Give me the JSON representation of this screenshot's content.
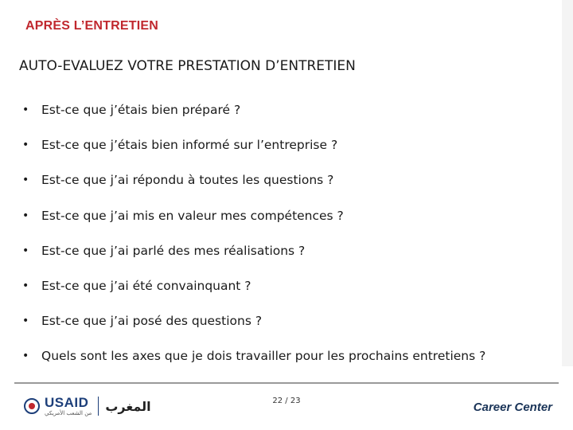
{
  "header": {
    "title": "APRÈS L’ENTRETIEN",
    "subtitle": "AUTO-EVALUEZ VOTRE PRESTATION D’ENTRETIEN"
  },
  "bullet_marker": "•",
  "bullets": [
    "Est-ce que j’étais bien préparé ?",
    "Est-ce que j’étais bien informé sur l’entreprise ?",
    "Est-ce que j’ai répondu à toutes les questions ?",
    "Est-ce que j’ai mis en valeur mes compétences ?",
    "Est-ce que j’ai parlé des mes réalisations ?",
    "Est-ce que j’ai été convainquant ?",
    "Est-ce que j’ai posé des questions ?",
    "Quels sont les axes que je dois travailler pour les prochains entretiens ?"
  ],
  "footer": {
    "usaid_label": "USAID",
    "usaid_tagline": "من الشعب الأمريكي",
    "arabic_label": "المغرب",
    "page_number": "22 / 23",
    "career_center": "Career Center"
  },
  "colors": {
    "title": "#c0282e",
    "usaid_blue": "#1d3f7a",
    "career_navy": "#1a3458"
  }
}
